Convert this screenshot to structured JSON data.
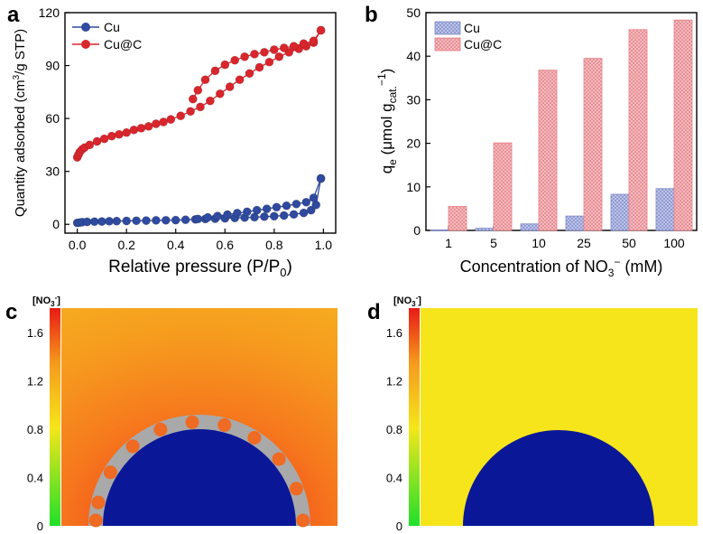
{
  "panel_letters": {
    "a": "a",
    "b": "b",
    "c": "c",
    "d": "d"
  },
  "chart_data": [
    {
      "id": "a",
      "type": "line",
      "title": "",
      "xlabel": "Relative pressure (P/P",
      "xlabel_sub": "0",
      "xlabel_end": ")",
      "ylabel": "Quantity adsorbed (cm",
      "ylabel_sup": "3",
      "ylabel_end": "/g STP)",
      "xlim": [
        -0.05,
        1.05
      ],
      "ylim": [
        -5,
        120
      ],
      "xticks": [
        0.0,
        0.2,
        0.4,
        0.6,
        0.8,
        1.0
      ],
      "xtick_labels": [
        "0.0",
        "0.2",
        "0.4",
        "0.6",
        "0.8",
        "1.0"
      ],
      "yticks": [
        0,
        30,
        60,
        90,
        120
      ],
      "ytick_labels": [
        "0",
        "30",
        "60",
        "90",
        "120"
      ],
      "legend": "top-left",
      "series": [
        {
          "name": "Cu",
          "color": "#2f4a9e",
          "adsorption": {
            "x": [
              0.0,
              0.01,
              0.02,
              0.04,
              0.07,
              0.1,
              0.13,
              0.16,
              0.2,
              0.24,
              0.28,
              0.32,
              0.36,
              0.4,
              0.44,
              0.48,
              0.52,
              0.56,
              0.6,
              0.64,
              0.68,
              0.72,
              0.76,
              0.8,
              0.84,
              0.88,
              0.92,
              0.95,
              0.97,
              0.99
            ],
            "y": [
              0.8,
              1.0,
              1.2,
              1.4,
              1.5,
              1.6,
              1.7,
              1.8,
              1.9,
              2.0,
              2.1,
              2.2,
              2.3,
              2.4,
              2.6,
              2.8,
              3.0,
              3.2,
              3.4,
              3.6,
              3.8,
              4.0,
              4.3,
              4.6,
              5.0,
              5.6,
              6.5,
              8,
              11,
              26
            ]
          },
          "desorption": {
            "x": [
              0.99,
              0.96,
              0.93,
              0.89,
              0.85,
              0.81,
              0.77,
              0.73,
              0.69,
              0.65,
              0.61,
              0.57,
              0.53,
              0.49
            ],
            "y": [
              26,
              15,
              12.5,
              11.5,
              10.5,
              9.7,
              8.8,
              8.0,
              7.1,
              6.3,
              5.5,
              4.7,
              3.9,
              3.0
            ]
          }
        },
        {
          "name": "Cu@C",
          "color": "#d8262c",
          "adsorption": {
            "x": [
              0.0,
              0.005,
              0.01,
              0.02,
              0.03,
              0.05,
              0.08,
              0.11,
              0.14,
              0.17,
              0.2,
              0.23,
              0.26,
              0.29,
              0.32,
              0.35,
              0.38,
              0.42,
              0.46,
              0.5,
              0.54,
              0.58,
              0.62,
              0.66,
              0.7,
              0.74,
              0.78,
              0.82,
              0.86,
              0.9,
              0.93,
              0.96,
              0.99
            ],
            "y": [
              38,
              39.5,
              41,
              42.5,
              43.5,
              45,
              47,
              48.5,
              50,
              51,
              52,
              53.5,
              54.5,
              55.5,
              57,
              58,
              59.5,
              61.5,
              64,
              66.5,
              70,
              74,
              78,
              82,
              85.5,
              89,
              92,
              95,
              97.5,
              99.5,
              101,
              103,
              110
            ]
          },
          "desorption": {
            "x": [
              0.99,
              0.96,
              0.92,
              0.88,
              0.84,
              0.8,
              0.76,
              0.72,
              0.68,
              0.64,
              0.6,
              0.56,
              0.52,
              0.49,
              0.47
            ],
            "y": [
              110,
              104,
              102.5,
              101,
              100,
              99,
              97.5,
              96.5,
              95,
              93,
              90.5,
              87,
              82,
              76,
              71
            ]
          }
        }
      ]
    },
    {
      "id": "b",
      "type": "bar",
      "title": "",
      "xlabel": "Concentration of NO",
      "xlabel_sub": "3",
      "xlabel_sup": "−",
      "xlabel_end": " (mM)",
      "ylabel": "q",
      "ylabel_sub": "e",
      "ylabel_mid": " (μmol g",
      "ylabel_sub2": "cat.",
      "ylabel_sup": "−1",
      "ylabel_end": ")",
      "ylim": [
        0,
        50
      ],
      "yticks": [
        0,
        10,
        20,
        30,
        40,
        50
      ],
      "ytick_labels": [
        "0",
        "10",
        "20",
        "30",
        "40",
        "50"
      ],
      "categories": [
        "1",
        "5",
        "10",
        "25",
        "50",
        "100"
      ],
      "legend": "top-left",
      "series": [
        {
          "name": "Cu",
          "color": "#9aa6d6",
          "values": [
            0.1,
            0.5,
            1.5,
            3.3,
            8.3,
            9.6
          ]
        },
        {
          "name": "Cu@C",
          "color": "#ec8f95",
          "values": [
            5.5,
            20.1,
            36.8,
            39.5,
            46.1,
            48.3
          ]
        }
      ]
    },
    {
      "id": "c",
      "type": "heatmap",
      "colorbar_title": "[NO",
      "colorbar_sub": "3",
      "colorbar_sup": "-",
      "colorbar_end": "]",
      "colorbar_range": [
        0,
        1.8
      ],
      "colorbar_ticks": [
        "0",
        "0.4",
        "0.8",
        "1.2",
        "1.6"
      ],
      "colors": {
        "low": "#29e12b",
        "mid": "#f5e719",
        "high": "#e82a1a",
        "particle": "#0a1898",
        "shell": "#a9a9a9",
        "site": "#ef6a22"
      }
    },
    {
      "id": "d",
      "type": "heatmap",
      "colorbar_title": "[NO",
      "colorbar_sub": "3",
      "colorbar_sup": "-",
      "colorbar_end": "]",
      "colorbar_range": [
        0,
        1.8
      ],
      "colorbar_ticks": [
        "0",
        "0.4",
        "0.8",
        "1.2",
        "1.6"
      ],
      "colors": {
        "field": "#f6e51b",
        "particle": "#0a1898"
      }
    }
  ]
}
